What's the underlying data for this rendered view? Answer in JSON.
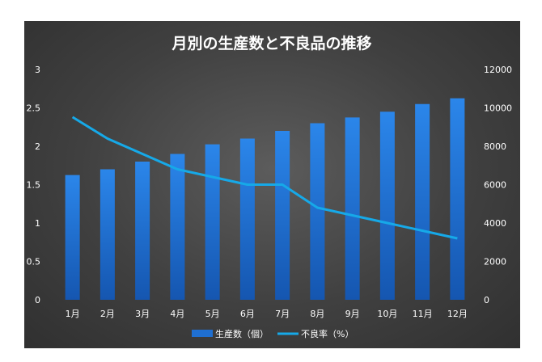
{
  "chart_data": {
    "type": "bar",
    "title": "月別の生産数と不良品の推移",
    "categories": [
      "1月",
      "2月",
      "3月",
      "4月",
      "5月",
      "6月",
      "7月",
      "8月",
      "9月",
      "10月",
      "11月",
      "12月"
    ],
    "series": [
      {
        "name": "生産数（個）",
        "type": "bar",
        "axis": "secondary",
        "color": "#1f6fd1",
        "values": [
          6500,
          6800,
          7200,
          7600,
          8100,
          8400,
          8800,
          9200,
          9500,
          9800,
          10200,
          10500
        ]
      },
      {
        "name": "不良率（%）",
        "type": "line",
        "axis": "primary",
        "color": "#16a9e8",
        "values": [
          2.38,
          2.1,
          1.9,
          1.7,
          1.6,
          1.5,
          1.5,
          1.2,
          1.1,
          1.0,
          0.9,
          0.8
        ]
      }
    ],
    "y_primary": {
      "ylim": [
        0,
        3
      ],
      "ticks": [
        "0",
        "0.5",
        "1",
        "1.5",
        "2",
        "2.5",
        "3"
      ]
    },
    "y_secondary": {
      "ylim": [
        0,
        12000
      ],
      "ticks": [
        "0",
        "2000",
        "4000",
        "6000",
        "8000",
        "10000",
        "12000"
      ]
    },
    "legend_position": "bottom",
    "grid": false
  }
}
